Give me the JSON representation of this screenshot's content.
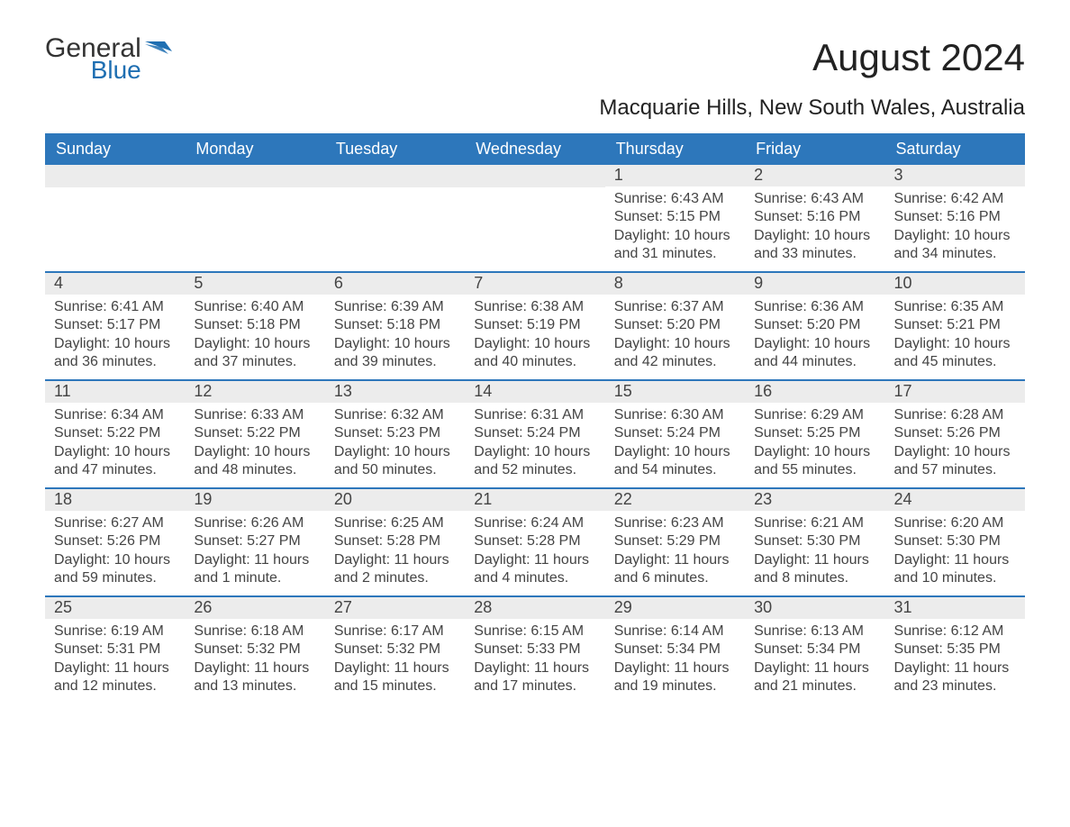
{
  "logo": {
    "text1": "General",
    "text2": "Blue",
    "icon_color": "#1f6fb2",
    "text1_color": "#333333",
    "text2_color": "#1f6fb2"
  },
  "title": "August 2024",
  "location": "Macquarie Hills, New South Wales, Australia",
  "colors": {
    "header_bg": "#2d77bb",
    "header_text": "#ffffff",
    "daynum_bg": "#ececec",
    "body_text": "#444444",
    "week_border": "#2d77bb"
  },
  "day_labels": [
    "Sunday",
    "Monday",
    "Tuesday",
    "Wednesday",
    "Thursday",
    "Friday",
    "Saturday"
  ],
  "weeks": [
    [
      {
        "num": "",
        "sunrise": "",
        "sunset": "",
        "daylight": ""
      },
      {
        "num": "",
        "sunrise": "",
        "sunset": "",
        "daylight": ""
      },
      {
        "num": "",
        "sunrise": "",
        "sunset": "",
        "daylight": ""
      },
      {
        "num": "",
        "sunrise": "",
        "sunset": "",
        "daylight": ""
      },
      {
        "num": "1",
        "sunrise": "Sunrise: 6:43 AM",
        "sunset": "Sunset: 5:15 PM",
        "daylight": "Daylight: 10 hours and 31 minutes."
      },
      {
        "num": "2",
        "sunrise": "Sunrise: 6:43 AM",
        "sunset": "Sunset: 5:16 PM",
        "daylight": "Daylight: 10 hours and 33 minutes."
      },
      {
        "num": "3",
        "sunrise": "Sunrise: 6:42 AM",
        "sunset": "Sunset: 5:16 PM",
        "daylight": "Daylight: 10 hours and 34 minutes."
      }
    ],
    [
      {
        "num": "4",
        "sunrise": "Sunrise: 6:41 AM",
        "sunset": "Sunset: 5:17 PM",
        "daylight": "Daylight: 10 hours and 36 minutes."
      },
      {
        "num": "5",
        "sunrise": "Sunrise: 6:40 AM",
        "sunset": "Sunset: 5:18 PM",
        "daylight": "Daylight: 10 hours and 37 minutes."
      },
      {
        "num": "6",
        "sunrise": "Sunrise: 6:39 AM",
        "sunset": "Sunset: 5:18 PM",
        "daylight": "Daylight: 10 hours and 39 minutes."
      },
      {
        "num": "7",
        "sunrise": "Sunrise: 6:38 AM",
        "sunset": "Sunset: 5:19 PM",
        "daylight": "Daylight: 10 hours and 40 minutes."
      },
      {
        "num": "8",
        "sunrise": "Sunrise: 6:37 AM",
        "sunset": "Sunset: 5:20 PM",
        "daylight": "Daylight: 10 hours and 42 minutes."
      },
      {
        "num": "9",
        "sunrise": "Sunrise: 6:36 AM",
        "sunset": "Sunset: 5:20 PM",
        "daylight": "Daylight: 10 hours and 44 minutes."
      },
      {
        "num": "10",
        "sunrise": "Sunrise: 6:35 AM",
        "sunset": "Sunset: 5:21 PM",
        "daylight": "Daylight: 10 hours and 45 minutes."
      }
    ],
    [
      {
        "num": "11",
        "sunrise": "Sunrise: 6:34 AM",
        "sunset": "Sunset: 5:22 PM",
        "daylight": "Daylight: 10 hours and 47 minutes."
      },
      {
        "num": "12",
        "sunrise": "Sunrise: 6:33 AM",
        "sunset": "Sunset: 5:22 PM",
        "daylight": "Daylight: 10 hours and 48 minutes."
      },
      {
        "num": "13",
        "sunrise": "Sunrise: 6:32 AM",
        "sunset": "Sunset: 5:23 PM",
        "daylight": "Daylight: 10 hours and 50 minutes."
      },
      {
        "num": "14",
        "sunrise": "Sunrise: 6:31 AM",
        "sunset": "Sunset: 5:24 PM",
        "daylight": "Daylight: 10 hours and 52 minutes."
      },
      {
        "num": "15",
        "sunrise": "Sunrise: 6:30 AM",
        "sunset": "Sunset: 5:24 PM",
        "daylight": "Daylight: 10 hours and 54 minutes."
      },
      {
        "num": "16",
        "sunrise": "Sunrise: 6:29 AM",
        "sunset": "Sunset: 5:25 PM",
        "daylight": "Daylight: 10 hours and 55 minutes."
      },
      {
        "num": "17",
        "sunrise": "Sunrise: 6:28 AM",
        "sunset": "Sunset: 5:26 PM",
        "daylight": "Daylight: 10 hours and 57 minutes."
      }
    ],
    [
      {
        "num": "18",
        "sunrise": "Sunrise: 6:27 AM",
        "sunset": "Sunset: 5:26 PM",
        "daylight": "Daylight: 10 hours and 59 minutes."
      },
      {
        "num": "19",
        "sunrise": "Sunrise: 6:26 AM",
        "sunset": "Sunset: 5:27 PM",
        "daylight": "Daylight: 11 hours and 1 minute."
      },
      {
        "num": "20",
        "sunrise": "Sunrise: 6:25 AM",
        "sunset": "Sunset: 5:28 PM",
        "daylight": "Daylight: 11 hours and 2 minutes."
      },
      {
        "num": "21",
        "sunrise": "Sunrise: 6:24 AM",
        "sunset": "Sunset: 5:28 PM",
        "daylight": "Daylight: 11 hours and 4 minutes."
      },
      {
        "num": "22",
        "sunrise": "Sunrise: 6:23 AM",
        "sunset": "Sunset: 5:29 PM",
        "daylight": "Daylight: 11 hours and 6 minutes."
      },
      {
        "num": "23",
        "sunrise": "Sunrise: 6:21 AM",
        "sunset": "Sunset: 5:30 PM",
        "daylight": "Daylight: 11 hours and 8 minutes."
      },
      {
        "num": "24",
        "sunrise": "Sunrise: 6:20 AM",
        "sunset": "Sunset: 5:30 PM",
        "daylight": "Daylight: 11 hours and 10 minutes."
      }
    ],
    [
      {
        "num": "25",
        "sunrise": "Sunrise: 6:19 AM",
        "sunset": "Sunset: 5:31 PM",
        "daylight": "Daylight: 11 hours and 12 minutes."
      },
      {
        "num": "26",
        "sunrise": "Sunrise: 6:18 AM",
        "sunset": "Sunset: 5:32 PM",
        "daylight": "Daylight: 11 hours and 13 minutes."
      },
      {
        "num": "27",
        "sunrise": "Sunrise: 6:17 AM",
        "sunset": "Sunset: 5:32 PM",
        "daylight": "Daylight: 11 hours and 15 minutes."
      },
      {
        "num": "28",
        "sunrise": "Sunrise: 6:15 AM",
        "sunset": "Sunset: 5:33 PM",
        "daylight": "Daylight: 11 hours and 17 minutes."
      },
      {
        "num": "29",
        "sunrise": "Sunrise: 6:14 AM",
        "sunset": "Sunset: 5:34 PM",
        "daylight": "Daylight: 11 hours and 19 minutes."
      },
      {
        "num": "30",
        "sunrise": "Sunrise: 6:13 AM",
        "sunset": "Sunset: 5:34 PM",
        "daylight": "Daylight: 11 hours and 21 minutes."
      },
      {
        "num": "31",
        "sunrise": "Sunrise: 6:12 AM",
        "sunset": "Sunset: 5:35 PM",
        "daylight": "Daylight: 11 hours and 23 minutes."
      }
    ]
  ]
}
